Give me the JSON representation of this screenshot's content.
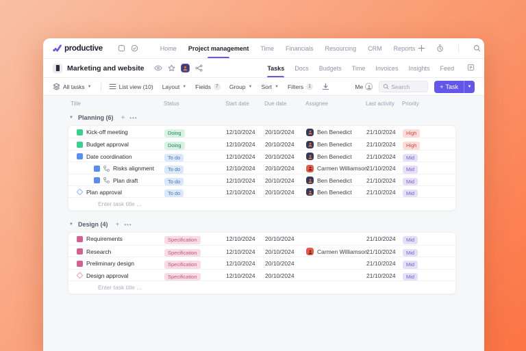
{
  "colors": {
    "accent-purple": "#6456e8",
    "bg-gradient-start": "#f9c0a4",
    "bg-gradient-end": "#fd7444",
    "window-bg": "#ffffff",
    "content-bg": "#f6f7f9",
    "border": "#ececf1",
    "text-dark": "#23222e",
    "text-gray": "#8e93a6",
    "badge-doing-bg": "#d8f3e4",
    "badge-doing-text": "#1f8659",
    "badge-todo-bg": "#dbe8f9",
    "badge-todo-text": "#4877b8",
    "badge-spec-bg": "#f9dbe6",
    "badge-spec-text": "#bc5680",
    "badge-high-bg": "#fcdcd9",
    "badge-high-text": "#d04a42",
    "badge-mid-bg": "#e5dff9",
    "badge-mid-text": "#7263c9",
    "count-badge-bg": "#e9ebf0",
    "count-badge-text": "#6a6e7c"
  },
  "topnav": {
    "brand": "productive",
    "items": [
      "Home",
      "Project management",
      "Time",
      "Financials",
      "Resourcing",
      "CRM",
      "Reports"
    ],
    "active_item": "Project management"
  },
  "project_header": {
    "title": "Marketing and website",
    "tabs": [
      "Tasks",
      "Docs",
      "Budgets",
      "Time",
      "Invoices",
      "Insights",
      "Feed"
    ],
    "active_tab": "Tasks"
  },
  "toolbar": {
    "scope": "All tasks",
    "view": "List view (10)",
    "layout": "Layout",
    "fields": "Fields",
    "fields_count": "7",
    "group": "Group",
    "sort": "Sort",
    "filters": "Filters",
    "filters_count": "1",
    "me": "Me",
    "search_placeholder": "Search",
    "task_button": "Task"
  },
  "avatars": {
    "ben": {
      "bg": "#323a5e",
      "fg": "#e8763d"
    },
    "carmen": {
      "bg": "#e25c49",
      "fg": "#6b241c"
    }
  },
  "table": {
    "columns": [
      "Title",
      "Status",
      "Start date",
      "Due date",
      "Assignee",
      "Last activity",
      "Priority"
    ],
    "sections": [
      {
        "name": "Planning (6)",
        "enter_placeholder": "Enter task title ...",
        "rows": [
          {
            "title": "Kick-off meeting",
            "icon": "square",
            "icon_color": "#3ecf8e",
            "indent": false,
            "subtask": false,
            "status": "Doing",
            "status_class": "doing",
            "start": "12/10/2024",
            "due": "20/10/2024",
            "assignee": "Ben Benedict",
            "avatar": "ben",
            "activity": "21/10/2024",
            "priority": "High",
            "priority_class": "high"
          },
          {
            "title": "Budget approval",
            "icon": "square",
            "icon_color": "#3ecf8e",
            "indent": false,
            "subtask": false,
            "status": "Doing",
            "status_class": "doing",
            "start": "12/10/2024",
            "due": "20/10/2024",
            "assignee": "Ben Benedict",
            "avatar": "ben",
            "activity": "21/10/2024",
            "priority": "High",
            "priority_class": "high"
          },
          {
            "title": "Date coordination",
            "icon": "square",
            "icon_color": "#5a8df0",
            "indent": false,
            "subtask": false,
            "status": "To do",
            "status_class": "todo",
            "start": "12/10/2024",
            "due": "20/10/2024",
            "assignee": "Ben Benedict",
            "avatar": "ben",
            "activity": "21/10/2024",
            "priority": "Mid",
            "priority_class": "mid"
          },
          {
            "title": "Risks alignment",
            "icon": "square",
            "icon_color": "#5a8df0",
            "indent": true,
            "subtask": true,
            "status": "To do",
            "status_class": "todo",
            "start": "12/10/2024",
            "due": "20/10/2024",
            "assignee": "Carmen Williamson",
            "avatar": "carmen",
            "activity": "21/10/2024",
            "priority": "Mid",
            "priority_class": "mid"
          },
          {
            "title": "Plan draft",
            "icon": "square",
            "icon_color": "#5a8df0",
            "indent": true,
            "subtask": true,
            "status": "To do",
            "status_class": "todo",
            "start": "12/10/2024",
            "due": "20/10/2024",
            "assignee": "Ben Benedict",
            "avatar": "ben",
            "activity": "21/10/2024",
            "priority": "Mid",
            "priority_class": "mid"
          },
          {
            "title": "Plan approval",
            "icon": "diamond",
            "icon_color": "#8fb4f2",
            "indent": false,
            "subtask": false,
            "status": "To do",
            "status_class": "todo",
            "start": "12/10/2024",
            "due": "20/10/2024",
            "assignee": "Ben Benedict",
            "avatar": "ben",
            "activity": "21/10/2024",
            "priority": "Mid",
            "priority_class": "mid"
          }
        ]
      },
      {
        "name": "Design (4)",
        "enter_placeholder": "Enter task title ...",
        "rows": [
          {
            "title": "Requirements",
            "icon": "square",
            "icon_color": "#cf6290",
            "indent": false,
            "subtask": false,
            "status": "Specification",
            "status_class": "spec",
            "start": "12/10/2024",
            "due": "20/10/2024",
            "assignee": "",
            "avatar": "",
            "activity": "21/10/2024",
            "priority": "Mid",
            "priority_class": "mid"
          },
          {
            "title": "Research",
            "icon": "square",
            "icon_color": "#cf6290",
            "indent": false,
            "subtask": false,
            "status": "Specification",
            "status_class": "spec",
            "start": "12/10/2024",
            "due": "20/10/2024",
            "assignee": "Carmen Williamson",
            "avatar": "carmen",
            "activity": "21/10/2024",
            "priority": "Mid",
            "priority_class": "mid"
          },
          {
            "title": "Preliminary design",
            "icon": "square",
            "icon_color": "#cf6290",
            "indent": false,
            "subtask": false,
            "status": "Specification",
            "status_class": "spec",
            "start": "12/10/2024",
            "due": "20/10/2024",
            "assignee": "",
            "avatar": "",
            "activity": "21/10/2024",
            "priority": "Mid",
            "priority_class": "mid"
          },
          {
            "title": "Design approval",
            "icon": "diamond",
            "icon_color": "#eb9eb8",
            "indent": false,
            "subtask": false,
            "status": "Specification",
            "status_class": "spec",
            "start": "12/10/2024",
            "due": "20/10/2024",
            "assignee": "",
            "avatar": "",
            "activity": "21/10/2024",
            "priority": "Mid",
            "priority_class": "mid"
          }
        ]
      }
    ]
  }
}
